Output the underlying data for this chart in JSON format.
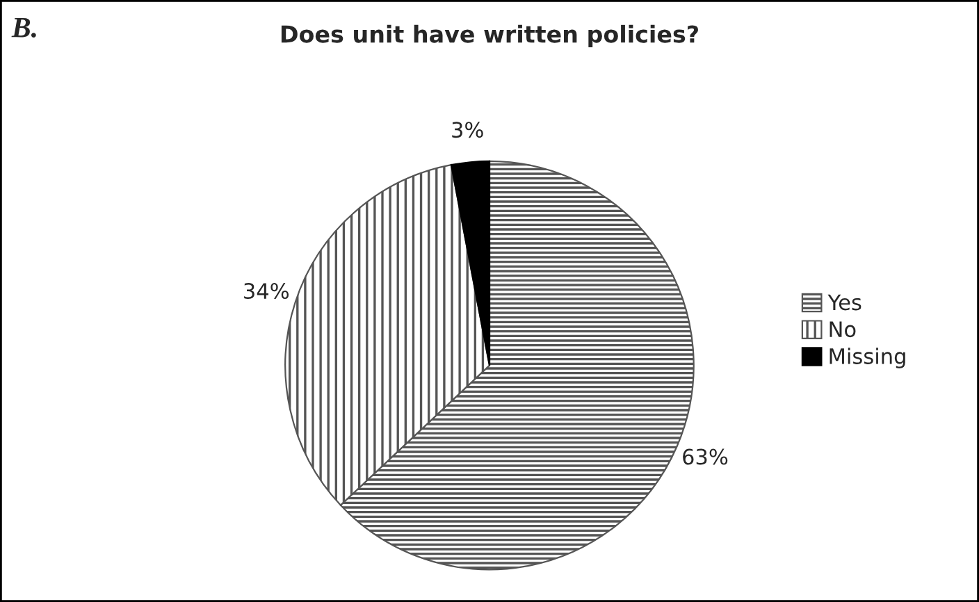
{
  "chart_data": {
    "type": "pie",
    "title": "Does unit have written policies?",
    "annotations": [
      "B."
    ],
    "categories": [
      "Yes",
      "No",
      "Missing"
    ],
    "values": [
      63,
      34,
      3
    ],
    "value_labels": [
      "63%",
      "34%",
      "3%"
    ],
    "colors": [
      "#555555",
      "#555555",
      "#000000"
    ],
    "legend": "right"
  }
}
